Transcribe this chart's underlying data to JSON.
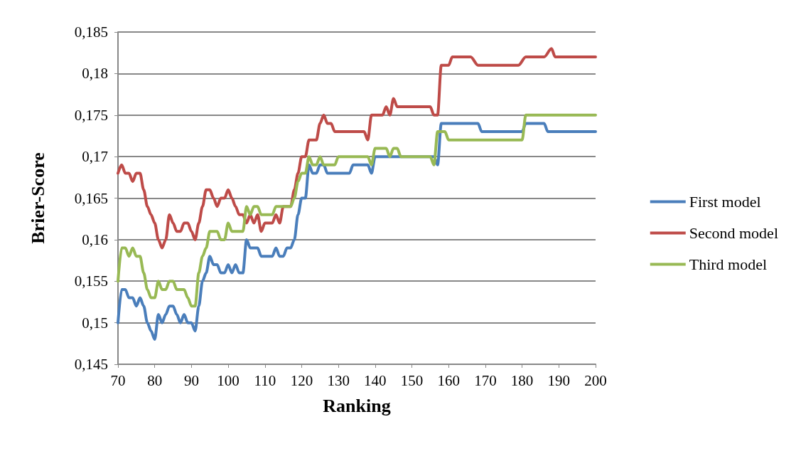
{
  "chart_data": {
    "type": "line",
    "xlabel": "Ranking",
    "ylabel": "Brier-Score",
    "xlim": [
      70,
      200
    ],
    "xticks": [
      70,
      80,
      90,
      100,
      110,
      120,
      130,
      140,
      150,
      160,
      170,
      180,
      190,
      200
    ],
    "ylim": [
      0.145,
      0.185
    ],
    "yticks": [
      {
        "value": 0.145,
        "label": "0,145"
      },
      {
        "value": 0.15,
        "label": "0,15"
      },
      {
        "value": 0.155,
        "label": "0,155"
      },
      {
        "value": 0.16,
        "label": "0,16"
      },
      {
        "value": 0.165,
        "label": "0,165"
      },
      {
        "value": 0.17,
        "label": "0,17"
      },
      {
        "value": 0.175,
        "label": "0,175"
      },
      {
        "value": 0.18,
        "label": "0,18"
      },
      {
        "value": 0.185,
        "label": "0,185"
      }
    ],
    "grid": "y",
    "legend": "right",
    "marker": "none",
    "line_style": "solid",
    "series": [
      {
        "name": "First model",
        "color": "#4a7ebb",
        "x": [
          70,
          71,
          72,
          73,
          74,
          75,
          76,
          77,
          78,
          79,
          80,
          81,
          82,
          83,
          84,
          85,
          86,
          87,
          88,
          89,
          90,
          91,
          92,
          93,
          94,
          95,
          96,
          97,
          98,
          99,
          100,
          101,
          102,
          103,
          104,
          105,
          106,
          108,
          109,
          112,
          113,
          114,
          115,
          116,
          117,
          118,
          119,
          120,
          121,
          122,
          123,
          124,
          125,
          126,
          127,
          133,
          134,
          137,
          138,
          139,
          140,
          147,
          148,
          156,
          157,
          158,
          168,
          169,
          180,
          181,
          186,
          187,
          200
        ],
        "values": [
          0.15,
          0.154,
          0.154,
          0.153,
          0.153,
          0.152,
          0.153,
          0.152,
          0.15,
          0.149,
          0.148,
          0.151,
          0.15,
          0.151,
          0.152,
          0.152,
          0.151,
          0.15,
          0.151,
          0.15,
          0.15,
          0.149,
          0.152,
          0.155,
          0.156,
          0.158,
          0.157,
          0.157,
          0.156,
          0.156,
          0.157,
          0.156,
          0.157,
          0.156,
          0.156,
          0.16,
          0.159,
          0.159,
          0.158,
          0.158,
          0.159,
          0.158,
          0.158,
          0.159,
          0.159,
          0.16,
          0.163,
          0.165,
          0.165,
          0.169,
          0.168,
          0.168,
          0.169,
          0.169,
          0.168,
          0.168,
          0.169,
          0.169,
          0.169,
          0.168,
          0.17,
          0.17,
          0.17,
          0.17,
          0.169,
          0.174,
          0.174,
          0.173,
          0.173,
          0.174,
          0.174,
          0.173,
          0.173
        ]
      },
      {
        "name": "Second model",
        "color": "#be4b48",
        "x": [
          70,
          71,
          72,
          73,
          74,
          75,
          76,
          77,
          78,
          79,
          80,
          81,
          82,
          83,
          84,
          85,
          86,
          87,
          88,
          89,
          90,
          91,
          92,
          93,
          94,
          95,
          96,
          97,
          98,
          99,
          100,
          101,
          102,
          103,
          104,
          105,
          106,
          107,
          108,
          109,
          110,
          112,
          113,
          114,
          115,
          117,
          118,
          119,
          120,
          121,
          122,
          124,
          125,
          126,
          127,
          128,
          129,
          137,
          138,
          139,
          141,
          142,
          143,
          144,
          145,
          146,
          155,
          156,
          157,
          158,
          160,
          161,
          166,
          168,
          179,
          181,
          186,
          188,
          189,
          200
        ],
        "values": [
          0.168,
          0.169,
          0.168,
          0.168,
          0.167,
          0.168,
          0.168,
          0.166,
          0.164,
          0.163,
          0.162,
          0.16,
          0.159,
          0.16,
          0.163,
          0.162,
          0.161,
          0.161,
          0.162,
          0.162,
          0.161,
          0.16,
          0.162,
          0.164,
          0.166,
          0.166,
          0.165,
          0.164,
          0.165,
          0.165,
          0.166,
          0.165,
          0.164,
          0.163,
          0.163,
          0.162,
          0.163,
          0.162,
          0.163,
          0.161,
          0.162,
          0.162,
          0.163,
          0.162,
          0.164,
          0.164,
          0.166,
          0.168,
          0.17,
          0.17,
          0.172,
          0.172,
          0.174,
          0.175,
          0.174,
          0.174,
          0.173,
          0.173,
          0.172,
          0.175,
          0.175,
          0.175,
          0.176,
          0.175,
          0.177,
          0.176,
          0.176,
          0.175,
          0.175,
          0.181,
          0.181,
          0.182,
          0.182,
          0.181,
          0.181,
          0.182,
          0.182,
          0.183,
          0.182,
          0.182
        ]
      },
      {
        "name": "Third model",
        "color": "#98b954",
        "x": [
          70,
          71,
          72,
          73,
          74,
          75,
          76,
          77,
          78,
          79,
          80,
          81,
          82,
          83,
          84,
          85,
          86,
          87,
          88,
          89,
          90,
          91,
          92,
          93,
          94,
          95,
          97,
          98,
          99,
          100,
          101,
          103,
          104,
          105,
          106,
          107,
          108,
          109,
          112,
          113,
          117,
          118,
          119,
          120,
          121,
          122,
          123,
          124,
          125,
          126,
          129,
          130,
          138,
          139,
          140,
          143,
          144,
          145,
          146,
          147,
          155,
          156,
          157,
          159,
          160,
          179,
          180,
          181,
          200
        ],
        "values": [
          0.155,
          0.159,
          0.159,
          0.158,
          0.159,
          0.158,
          0.158,
          0.156,
          0.154,
          0.153,
          0.153,
          0.155,
          0.154,
          0.154,
          0.155,
          0.155,
          0.154,
          0.154,
          0.154,
          0.153,
          0.152,
          0.152,
          0.156,
          0.158,
          0.159,
          0.161,
          0.161,
          0.16,
          0.16,
          0.162,
          0.161,
          0.161,
          0.161,
          0.164,
          0.163,
          0.164,
          0.164,
          0.163,
          0.163,
          0.164,
          0.164,
          0.165,
          0.167,
          0.168,
          0.168,
          0.17,
          0.169,
          0.169,
          0.17,
          0.169,
          0.169,
          0.17,
          0.17,
          0.169,
          0.171,
          0.171,
          0.17,
          0.171,
          0.171,
          0.17,
          0.17,
          0.169,
          0.173,
          0.173,
          0.172,
          0.172,
          0.172,
          0.175,
          0.175
        ]
      }
    ]
  }
}
